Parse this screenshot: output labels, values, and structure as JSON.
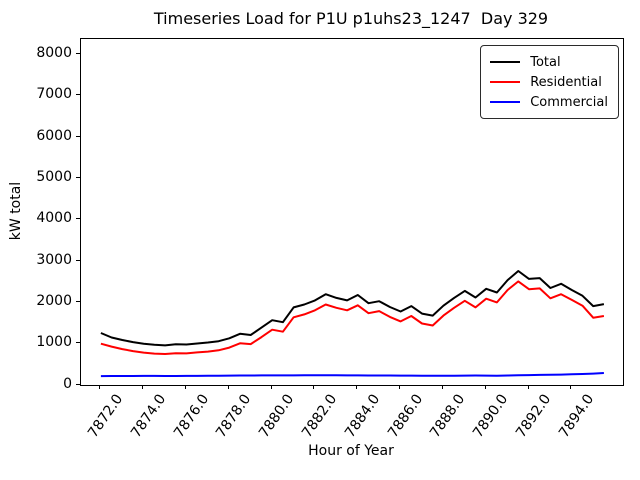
{
  "chart_data": {
    "type": "line",
    "title": "Timeseries Load for P1U p1uhs23_1247  Day 329",
    "xlabel": "Hour of Year",
    "ylabel": "kW total",
    "xlim": [
      7871.07,
      7896.39
    ],
    "ylim": [
      0,
      8380
    ],
    "grid": false,
    "legend_position": "upper right",
    "yticks": [
      0,
      1000,
      2000,
      3000,
      4000,
      5000,
      6000,
      7000,
      8000
    ],
    "ytick_labels": [
      "0",
      "1000",
      "2000",
      "3000",
      "4000",
      "5000",
      "6000",
      "7000",
      "8000"
    ],
    "xticks": [
      7872,
      7874,
      7876,
      7878,
      7880,
      7882,
      7884,
      7886,
      7888,
      7890,
      7892,
      7894
    ],
    "xtick_labels": [
      "7872.0",
      "7874.0",
      "7876.0",
      "7878.0",
      "7880.0",
      "7882.0",
      "7884.0",
      "7886.0",
      "7888.0",
      "7890.0",
      "7892.0",
      "7894.0"
    ],
    "x": [
      7872.0,
      7872.5,
      7873.0,
      7873.5,
      7874.0,
      7874.5,
      7875.0,
      7875.5,
      7876.0,
      7876.5,
      7877.0,
      7877.5,
      7878.0,
      7878.5,
      7879.0,
      7879.5,
      7880.0,
      7880.5,
      7881.0,
      7881.5,
      7882.0,
      7882.5,
      7883.0,
      7883.5,
      7884.0,
      7884.5,
      7885.0,
      7885.5,
      7886.0,
      7886.5,
      7887.0,
      7887.5,
      7888.0,
      7888.5,
      7889.0,
      7889.5,
      7890.0,
      7890.5,
      7891.0,
      7891.5,
      7892.0,
      7892.5,
      7893.0,
      7893.5,
      7894.0,
      7894.5,
      7895.0,
      7895.5
    ],
    "series": [
      {
        "name": "Total",
        "color": "#000000",
        "values": [
          1260,
          1150,
          1090,
          1040,
          1000,
          975,
          960,
          985,
          980,
          1005,
          1030,
          1060,
          1130,
          1240,
          1210,
          1390,
          1570,
          1520,
          1880,
          1950,
          2050,
          2200,
          2110,
          2050,
          2180,
          1980,
          2030,
          1890,
          1780,
          1910,
          1730,
          1680,
          1920,
          2110,
          2280,
          2120,
          2330,
          2240,
          2540,
          2760,
          2570,
          2590,
          2350,
          2450,
          2300,
          2160,
          1910,
          1960
        ]
      },
      {
        "name": "Residential",
        "color": "#ff0000",
        "values": [
          1000,
          930,
          870,
          820,
          785,
          760,
          750,
          770,
          765,
          790,
          810,
          840,
          905,
          1010,
          990,
          1160,
          1340,
          1290,
          1640,
          1710,
          1810,
          1950,
          1870,
          1810,
          1930,
          1740,
          1790,
          1650,
          1540,
          1670,
          1490,
          1440,
          1680,
          1870,
          2040,
          1880,
          2090,
          2000,
          2300,
          2510,
          2320,
          2340,
          2100,
          2200,
          2060,
          1920,
          1630,
          1670
        ]
      },
      {
        "name": "Commercial",
        "color": "#0000ff",
        "values": [
          215,
          218,
          218,
          219,
          220,
          220,
          219,
          219,
          220,
          221,
          222,
          223,
          227,
          230,
          230,
          232,
          233,
          232,
          233,
          234,
          235,
          235,
          234,
          233,
          232,
          231,
          230,
          229,
          228,
          227,
          226,
          225,
          224,
          226,
          228,
          230,
          228,
          226,
          230,
          235,
          240,
          244,
          248,
          252,
          258,
          266,
          276,
          290
        ]
      }
    ]
  }
}
